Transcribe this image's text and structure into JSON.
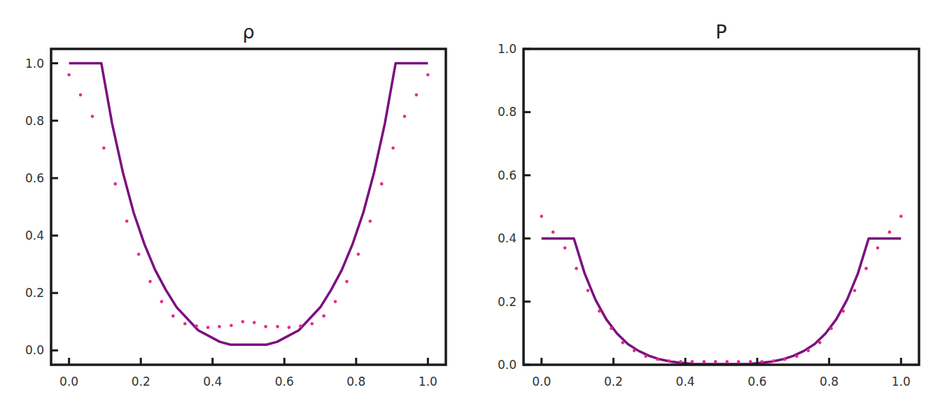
{
  "chart_data": [
    {
      "type": "line",
      "title": "ρ",
      "xlim": [
        -0.05,
        1.05
      ],
      "ylim": [
        -0.05,
        1.05
      ],
      "xticks": [
        {
          "value": 0,
          "label": "0.0"
        },
        0.2,
        0.4,
        0.6,
        0.8,
        {
          "value": 1,
          "label": "1.0"
        }
      ],
      "yticks": [
        {
          "value": 0,
          "label": "0.0"
        },
        0.2,
        0.4,
        0.6,
        0.8,
        {
          "value": 1,
          "label": "1.0"
        }
      ],
      "series": [
        {
          "type": "line",
          "color": "#7b1080",
          "x": [
            0,
            0.09,
            0.12,
            0.15,
            0.18,
            0.21,
            0.24,
            0.27,
            0.3,
            0.33,
            0.36,
            0.39,
            0.42,
            0.45,
            0.55,
            0.58,
            0.61,
            0.64,
            0.67,
            0.7,
            0.73,
            0.76,
            0.79,
            0.82,
            0.85,
            0.88,
            0.91,
            1.0
          ],
          "values": [
            1,
            1,
            0.79,
            0.62,
            0.48,
            0.37,
            0.28,
            0.21,
            0.15,
            0.11,
            0.07,
            0.05,
            0.03,
            0.02,
            0.02,
            0.03,
            0.05,
            0.07,
            0.11,
            0.15,
            0.21,
            0.28,
            0.37,
            0.48,
            0.62,
            0.79,
            1,
            1
          ]
        },
        {
          "type": "scatter",
          "color": "#e8288a",
          "marker": "circle",
          "x": [
            0,
            0.032,
            0.065,
            0.097,
            0.129,
            0.161,
            0.194,
            0.226,
            0.258,
            0.29,
            0.323,
            0.355,
            0.387,
            0.419,
            0.452,
            0.484,
            0.516,
            0.548,
            0.581,
            0.613,
            0.645,
            0.677,
            0.71,
            0.742,
            0.774,
            0.806,
            0.839,
            0.871,
            0.903,
            0.935,
            0.968,
            1
          ],
          "values": [
            0.96,
            0.89,
            0.815,
            0.705,
            0.58,
            0.45,
            0.335,
            0.24,
            0.17,
            0.12,
            0.093,
            0.085,
            0.08,
            0.083,
            0.087,
            0.1,
            0.097,
            0.083,
            0.083,
            0.08,
            0.085,
            0.093,
            0.12,
            0.17,
            0.24,
            0.335,
            0.45,
            0.58,
            0.705,
            0.815,
            0.89,
            0.96
          ]
        }
      ]
    },
    {
      "type": "line",
      "title": "P",
      "xlim": [
        -0.05,
        1.05
      ],
      "ylim": [
        0,
        1
      ],
      "xticks": [
        {
          "value": 0,
          "label": "0.0"
        },
        0.2,
        0.4,
        0.6,
        0.8,
        {
          "value": 1,
          "label": "1.0"
        }
      ],
      "yticks": [
        {
          "value": 0,
          "label": "0.0"
        },
        0.2,
        0.4,
        0.6,
        0.8,
        {
          "value": 1,
          "label": "1.0"
        }
      ],
      "series": [
        {
          "type": "line",
          "color": "#7b1080",
          "x": [
            0,
            0.09,
            0.12,
            0.15,
            0.18,
            0.21,
            0.24,
            0.27,
            0.3,
            0.33,
            0.36,
            0.39,
            0.42,
            0.45,
            0.55,
            0.58,
            0.61,
            0.64,
            0.67,
            0.7,
            0.73,
            0.76,
            0.79,
            0.82,
            0.85,
            0.88,
            0.91,
            1.0
          ],
          "values": [
            0.4,
            0.4,
            0.289,
            0.206,
            0.144,
            0.099,
            0.066,
            0.044,
            0.028,
            0.017,
            0.01,
            0.006,
            0.003,
            0.002,
            0.002,
            0.003,
            0.006,
            0.01,
            0.017,
            0.028,
            0.044,
            0.066,
            0.099,
            0.144,
            0.206,
            0.289,
            0.4,
            0.4
          ]
        },
        {
          "type": "scatter",
          "color": "#e8288a",
          "marker": "circle",
          "x": [
            0,
            0.032,
            0.065,
            0.097,
            0.129,
            0.161,
            0.194,
            0.226,
            0.258,
            0.29,
            0.323,
            0.355,
            0.387,
            0.419,
            0.452,
            0.484,
            0.516,
            0.548,
            0.581,
            0.613,
            0.645,
            0.677,
            0.71,
            0.742,
            0.774,
            0.806,
            0.839,
            0.871,
            0.903,
            0.935,
            0.968,
            1
          ],
          "values": [
            0.47,
            0.42,
            0.37,
            0.305,
            0.235,
            0.17,
            0.115,
            0.07,
            0.045,
            0.027,
            0.017,
            0.012,
            0.01,
            0.01,
            0.01,
            0.01,
            0.01,
            0.01,
            0.01,
            0.01,
            0.012,
            0.017,
            0.027,
            0.045,
            0.07,
            0.115,
            0.17,
            0.235,
            0.305,
            0.37,
            0.42,
            0.47
          ]
        }
      ]
    }
  ]
}
